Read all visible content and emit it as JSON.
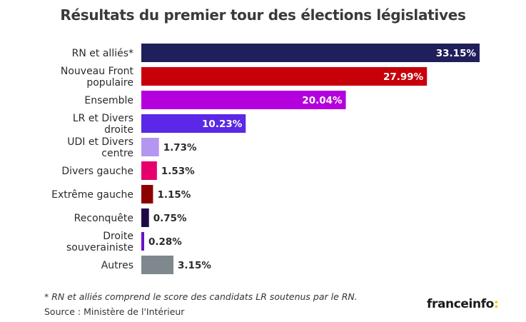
{
  "title": "Résultats du premier tour des élections législatives",
  "footnote": "* RN et alliés comprend le score des candidats LR soutenus par le RN.",
  "source": "Source : Ministère de l'Intérieur",
  "brand": {
    "name": "franceinfo",
    "suffix": ":",
    "accent_color": "#f3c600"
  },
  "chart_data": {
    "type": "bar",
    "orientation": "horizontal",
    "title": "Résultats du premier tour des élections législatives",
    "xlabel": "",
    "ylabel": "",
    "xlim": [
      0,
      33.15
    ],
    "grid": false,
    "categories": [
      [
        "RN et alliés*"
      ],
      [
        "Nouveau Front",
        "populaire"
      ],
      [
        "Ensemble"
      ],
      [
        "LR et Divers",
        "droite"
      ],
      [
        "UDI et Divers",
        "centre"
      ],
      [
        "Divers gauche"
      ],
      [
        "Extrême gauche"
      ],
      [
        "Reconquête"
      ],
      [
        "Droite",
        "souverainiste"
      ],
      [
        "Autres"
      ]
    ],
    "values": [
      33.15,
      27.99,
      20.04,
      10.23,
      1.73,
      1.53,
      1.15,
      0.75,
      0.28,
      3.15
    ],
    "value_labels": [
      "33.15%",
      "27.99%",
      "20.04%",
      "10.23%",
      "1.73%",
      "1.53%",
      "1.15%",
      "0.75%",
      "0.28%",
      "3.15%"
    ],
    "colors": [
      "#1f1f5c",
      "#c8000a",
      "#b400dc",
      "#5a28e6",
      "#b496f0",
      "#e6006e",
      "#8c0000",
      "#1e0a46",
      "#6414c8",
      "#7f888c"
    ]
  }
}
